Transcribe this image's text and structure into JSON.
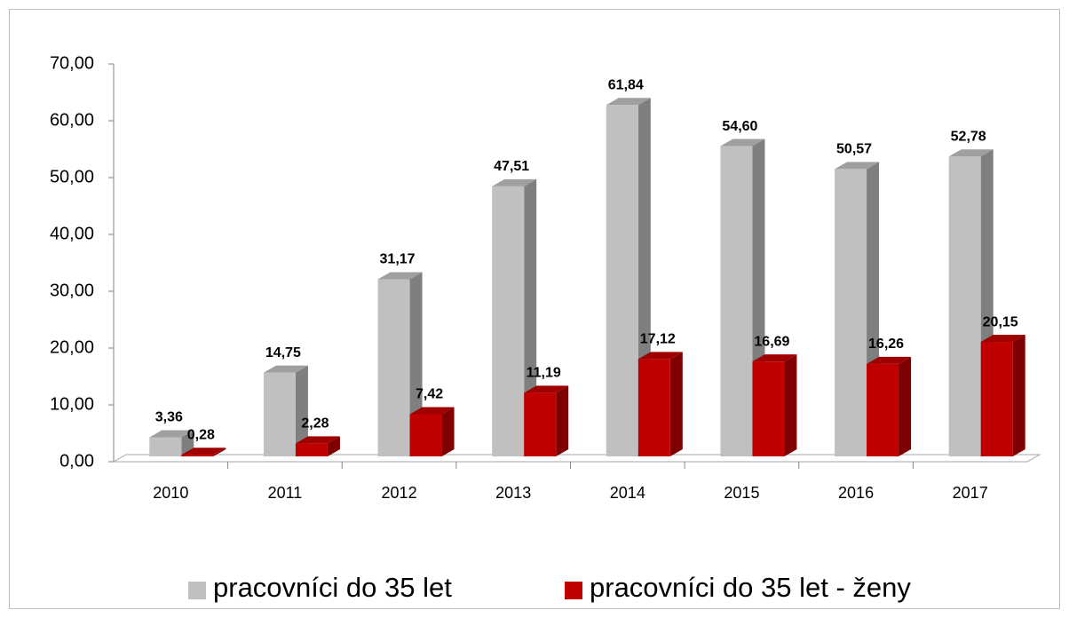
{
  "chart_data": {
    "type": "bar3d",
    "categories": [
      "2010",
      "2011",
      "2012",
      "2013",
      "2014",
      "2015",
      "2016",
      "2017"
    ],
    "series": [
      {
        "name": "pracovníci do 35 let",
        "color": "#c0c0c0",
        "values": [
          3.36,
          14.75,
          31.17,
          47.51,
          61.84,
          54.6,
          50.57,
          52.78
        ],
        "value_labels": [
          "3,36",
          "14,75",
          "31,17",
          "47,51",
          "61,84",
          "54,60",
          "50,57",
          "52,78"
        ]
      },
      {
        "name": "pracovníci do 35 let - ženy",
        "color": "#c00000",
        "values": [
          0.28,
          2.28,
          7.42,
          11.19,
          17.12,
          16.69,
          16.26,
          20.15
        ],
        "value_labels": [
          "0,28",
          "2,28",
          "7,42",
          "11,19",
          "17,12",
          "16,69",
          "16,26",
          "20,15"
        ]
      }
    ],
    "ylim": [
      0,
      70
    ],
    "yticks": [
      {
        "value": 0,
        "label": "0,00"
      },
      {
        "value": 10,
        "label": "10,00"
      },
      {
        "value": 20,
        "label": "20,00"
      },
      {
        "value": 30,
        "label": "30,00"
      },
      {
        "value": 40,
        "label": "40,00"
      },
      {
        "value": 50,
        "label": "50,00"
      },
      {
        "value": 60,
        "label": "60,00"
      },
      {
        "value": 70,
        "label": "70,00"
      }
    ],
    "legend": "bottom"
  }
}
